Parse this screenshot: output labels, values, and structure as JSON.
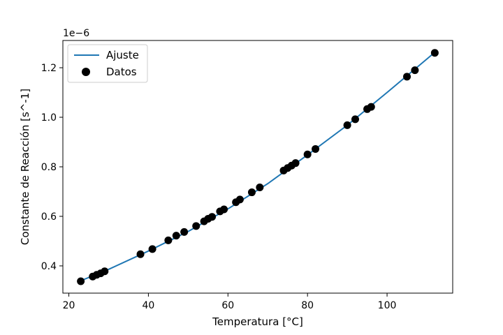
{
  "chart_data": {
    "type": "scatter",
    "title": "",
    "xlabel": "Temperatura [°C]",
    "ylabel": "Constante de Reacción [s^-1]",
    "y_offset_text": "1e−6",
    "xlim": [
      18.5,
      116.5
    ],
    "ylim": [
      0.29,
      1.31
    ],
    "xticks": [
      20,
      40,
      60,
      80,
      100
    ],
    "yticks": [
      0.4,
      0.6,
      0.8,
      1.0,
      1.2
    ],
    "xtick_labels": [
      "20",
      "40",
      "60",
      "80",
      "100"
    ],
    "ytick_labels": [
      "0.4",
      "0.6",
      "0.8",
      "1.0",
      "1.2"
    ],
    "grid": false,
    "legend_position": "upper-left",
    "series": [
      {
        "name": "Ajuste",
        "kind": "line",
        "color": "#1f77b4",
        "x": [
          23,
          30,
          40,
          50,
          60,
          70,
          80,
          90,
          100,
          112
        ],
        "y": [
          0.34,
          0.386,
          0.46,
          0.539,
          0.63,
          0.732,
          0.848,
          0.968,
          1.1,
          1.262
        ]
      },
      {
        "name": "Datos",
        "kind": "scatter",
        "color": "#000000",
        "x": [
          23,
          26,
          27,
          28,
          29,
          38,
          41,
          45,
          47,
          49,
          52,
          54,
          55,
          56,
          58,
          59,
          62,
          63,
          66,
          68,
          74,
          75,
          76,
          77,
          80,
          82,
          90,
          92,
          95,
          96,
          105,
          107,
          112
        ],
        "y": [
          0.338,
          0.357,
          0.364,
          0.37,
          0.378,
          0.447,
          0.468,
          0.503,
          0.522,
          0.537,
          0.561,
          0.58,
          0.59,
          0.598,
          0.62,
          0.628,
          0.657,
          0.668,
          0.697,
          0.717,
          0.785,
          0.795,
          0.805,
          0.815,
          0.85,
          0.872,
          0.968,
          0.992,
          1.033,
          1.042,
          1.164,
          1.19,
          1.26
        ]
      }
    ]
  }
}
